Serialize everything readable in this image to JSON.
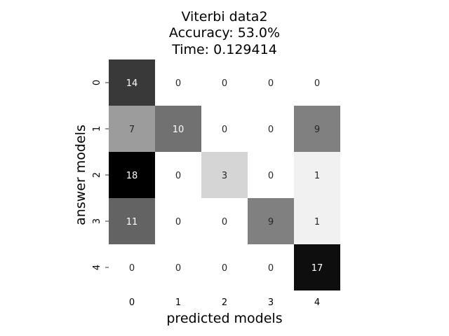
{
  "chart_data": {
    "type": "heatmap",
    "title_lines": [
      "Viterbi data2",
      "Accuracy: 53.0%",
      "Time: 0.129414"
    ],
    "xlabel": "predicted models",
    "ylabel": "answer models",
    "x_categories": [
      "0",
      "1",
      "2",
      "3",
      "4"
    ],
    "y_categories": [
      "0",
      "1",
      "2",
      "3",
      "4"
    ],
    "values": [
      [
        14,
        0,
        0,
        0,
        0
      ],
      [
        7,
        10,
        0,
        0,
        9
      ],
      [
        18,
        0,
        3,
        0,
        1
      ],
      [
        11,
        0,
        0,
        9,
        1
      ],
      [
        0,
        0,
        0,
        0,
        17
      ]
    ],
    "colormap": "greys",
    "mask_zeros": true,
    "colorbar": false,
    "vmin": 0,
    "vmax": 18
  }
}
